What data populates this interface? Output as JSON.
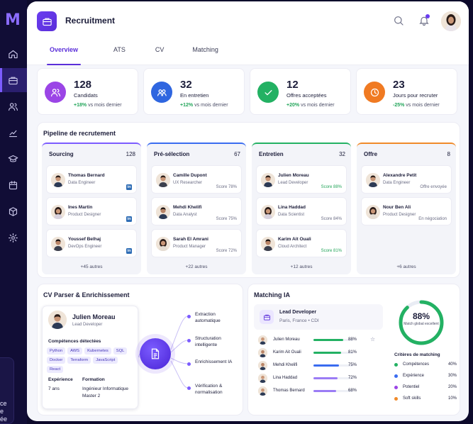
{
  "sidebar": {
    "logo": "M",
    "icons": [
      "home-icon",
      "briefcase-icon",
      "users-icon",
      "chart-icon",
      "graduation-cap-icon",
      "calendar-icon",
      "box-icon",
      "gear-icon"
    ],
    "partial_text": [
      "ce",
      "e",
      "ée"
    ]
  },
  "header": {
    "title": "Recruitment",
    "tabs": [
      "Overview",
      "ATS",
      "CV",
      "Matching"
    ],
    "active_tab": "Overview"
  },
  "kpis": [
    {
      "value": "128",
      "label": "Candidats",
      "delta": "+18%",
      "delta_suffix": "vs mois dernier",
      "color": "#9b45e6"
    },
    {
      "value": "32",
      "label": "En entretien",
      "delta": "+12%",
      "delta_suffix": "vs mois dernier",
      "color": "#2f66e0"
    },
    {
      "value": "12",
      "label": "Offres acceptées",
      "delta": "+20%",
      "delta_suffix": "vs mois dernier",
      "color": "#23b163"
    },
    {
      "value": "23",
      "label": "Jours pour recruter",
      "delta": "-25%",
      "delta_suffix": "vs mois dernier",
      "color": "#f07a22"
    }
  ],
  "pipeline": {
    "title": "Pipeline de recrutement",
    "columns": [
      {
        "title": "Sourcing",
        "count": "128",
        "color": "#7c5cff",
        "more": "+45 autres",
        "cards": [
          {
            "name": "Thomas Bernard",
            "role": "Data Engineer",
            "tag": "in"
          },
          {
            "name": "Ines Martin",
            "role": "Product Designer",
            "tag": "in"
          },
          {
            "name": "Youssef Belhaj",
            "role": "DevOps Engineer",
            "tag": "in"
          }
        ]
      },
      {
        "title": "Pré-sélection",
        "count": "67",
        "color": "#3a6cf0",
        "more": "+22 autres",
        "cards": [
          {
            "name": "Camille Dupont",
            "role": "UX Researcher",
            "score": "Score 78%"
          },
          {
            "name": "Mehdi Khelifi",
            "role": "Data Analyst",
            "score": "Score 75%"
          },
          {
            "name": "Sarah El Amrani",
            "role": "Product Manager",
            "score": "Score 72%"
          }
        ]
      },
      {
        "title": "Entretien",
        "count": "32",
        "color": "#23b163",
        "more": "+12 autres",
        "cards": [
          {
            "name": "Julien Moreau",
            "role": "Lead Developer",
            "score": "Score 88%",
            "green": true
          },
          {
            "name": "Lina Haddad",
            "role": "Data Scientist",
            "score": "Score 84%"
          },
          {
            "name": "Karim Ait Ouali",
            "role": "Cloud Architect",
            "score": "Score 81%",
            "green": true
          }
        ]
      },
      {
        "title": "Offre",
        "count": "8",
        "color": "#f08a2a",
        "more": "+6 autres",
        "cards": [
          {
            "name": "Alexandre Petit",
            "role": "Data Engineer",
            "score": "Offre envoyée"
          },
          {
            "name": "Nour Ben Ali",
            "role": "Product Designer",
            "score": "En négociation"
          }
        ]
      }
    ]
  },
  "cv_parser": {
    "title": "CV Parser & Enrichissement",
    "candidate": {
      "name": "Julien Moreau",
      "role": "Lead Developer"
    },
    "skills_title": "Compétences détectées",
    "skills": [
      "Python",
      "AWS",
      "Kubernetes",
      "SQL",
      "Docker",
      "Terraform",
      "JavaScript",
      "React"
    ],
    "experience_label": "Expérience",
    "experience_value": "7 ans",
    "education_label": "Formation",
    "education_value": "Ingénieur Informatique",
    "education_level": "Master 2",
    "features": [
      "Extraction automatique",
      "Structuration intelligente",
      "Enrichissement IA",
      "Vérification & normalisation"
    ]
  },
  "matching": {
    "title": "Matching IA",
    "job_title": "Lead Developer",
    "job_sub": "Paris, France • CDI",
    "rows": [
      {
        "name": "Julien Moreau",
        "pct": "88%",
        "value": 88,
        "color": "#23b163",
        "starred": true
      },
      {
        "name": "Karim Ait Ouali",
        "pct": "81%",
        "value": 81,
        "color": "#23b163"
      },
      {
        "name": "Mehdi Khelifi",
        "pct": "75%",
        "value": 75,
        "color": "#3a6cf0"
      },
      {
        "name": "Lina Haddad",
        "pct": "72%",
        "value": 72,
        "color": "#9b7cf5"
      },
      {
        "name": "Thomas Bernard",
        "pct": "68%",
        "value": 68,
        "color": "#9b7cf5"
      }
    ],
    "gauge_value": "88%",
    "gauge_fraction": 0.88,
    "gauge_label": "Match global excellent",
    "criteria_title": "Critères de matching",
    "criteria": [
      {
        "label": "Compétences",
        "value": "40%",
        "color": "#23b163"
      },
      {
        "label": "Expérience",
        "value": "30%",
        "color": "#3a6cf0"
      },
      {
        "label": "Potentiel",
        "value": "20%",
        "color": "#9b45e6"
      },
      {
        "label": "Soft skills",
        "value": "10%",
        "color": "#f08a2a"
      }
    ]
  }
}
